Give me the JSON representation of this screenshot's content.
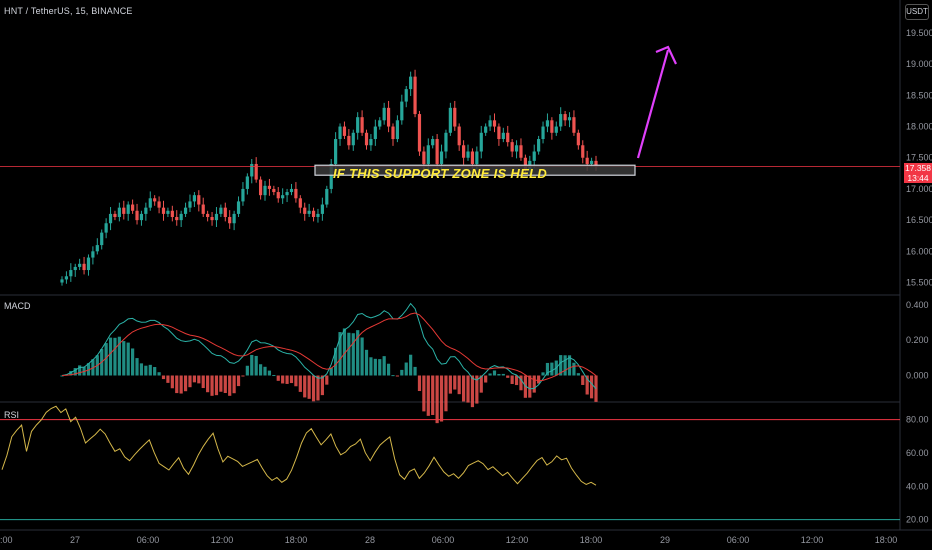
{
  "header": {
    "symbol_line": "HNT / TetherUS, 15, BINANCE"
  },
  "currency_button": "USDT",
  "price_tag": {
    "price": "17.358",
    "countdown": "13:44"
  },
  "annotation": {
    "text": "IF THIS SUPPORT ZONE IS HELD"
  },
  "panes": {
    "macd_title": "MACD",
    "rsi_title": "RSI"
  },
  "colors": {
    "up": "#26a69a",
    "down": "#ef5350",
    "arrow": "#e040fb",
    "rsi_line": "#d4b74a",
    "macd_line": "#2bb3a8",
    "signal_line": "#e53935",
    "price_line": "#f23645"
  },
  "chart_data": [
    {
      "type": "candlestick",
      "yaxis_ticks": [
        "19.500",
        "19.000",
        "18.500",
        "18.000",
        "17.500",
        "17.000",
        "16.500",
        "16.000",
        "15.500"
      ],
      "ylim": [
        15.3,
        19.9
      ],
      "xaxis_ticks": [
        ":00",
        "27",
        "06:00",
        "12:00",
        "18:00",
        "28",
        "06:00",
        "12:00",
        "18:00",
        "29",
        "06:00",
        "12:00",
        "18:00"
      ],
      "support_zone": [
        17.22,
        17.38
      ],
      "last_price": 17.358,
      "closes": [
        15.55,
        15.6,
        15.7,
        15.75,
        15.8,
        15.7,
        15.9,
        16.0,
        16.1,
        16.3,
        16.45,
        16.6,
        16.55,
        16.7,
        16.6,
        16.75,
        16.65,
        16.5,
        16.6,
        16.7,
        16.85,
        16.8,
        16.7,
        16.6,
        16.65,
        16.55,
        16.5,
        16.6,
        16.7,
        16.8,
        16.9,
        16.75,
        16.6,
        16.55,
        16.5,
        16.6,
        16.7,
        16.55,
        16.45,
        16.6,
        16.8,
        17.0,
        17.2,
        17.4,
        17.15,
        16.9,
        17.05,
        17.0,
        16.95,
        16.85,
        16.9,
        16.95,
        17.0,
        16.85,
        16.7,
        16.6,
        16.65,
        16.55,
        16.6,
        16.75,
        17.0,
        17.4,
        17.8,
        18.0,
        17.85,
        17.7,
        17.9,
        18.15,
        17.9,
        17.7,
        17.8,
        18.0,
        18.1,
        18.3,
        18.0,
        17.8,
        18.1,
        18.4,
        18.6,
        18.8,
        18.2,
        17.6,
        17.4,
        17.7,
        17.8,
        17.4,
        17.6,
        17.9,
        18.3,
        18.0,
        17.7,
        17.5,
        17.6,
        17.4,
        17.6,
        17.9,
        18.0,
        18.1,
        18.0,
        17.8,
        17.9,
        17.75,
        17.6,
        17.7,
        17.5,
        17.3,
        17.45,
        17.6,
        17.8,
        18.0,
        18.1,
        17.9,
        18.0,
        18.2,
        18.1,
        18.15,
        17.9,
        17.7,
        17.5,
        17.4,
        17.45,
        17.36
      ]
    },
    {
      "type": "macd",
      "ylim": [
        -0.15,
        0.45
      ],
      "yaxis_ticks": [
        "0.400",
        "0.200",
        "0.000"
      ]
    },
    {
      "type": "rsi",
      "ylim": [
        15,
        90
      ],
      "yaxis_ticks": [
        "80.00",
        "60.00",
        "40.00",
        "20.00"
      ],
      "bands": [
        80,
        20
      ]
    }
  ]
}
